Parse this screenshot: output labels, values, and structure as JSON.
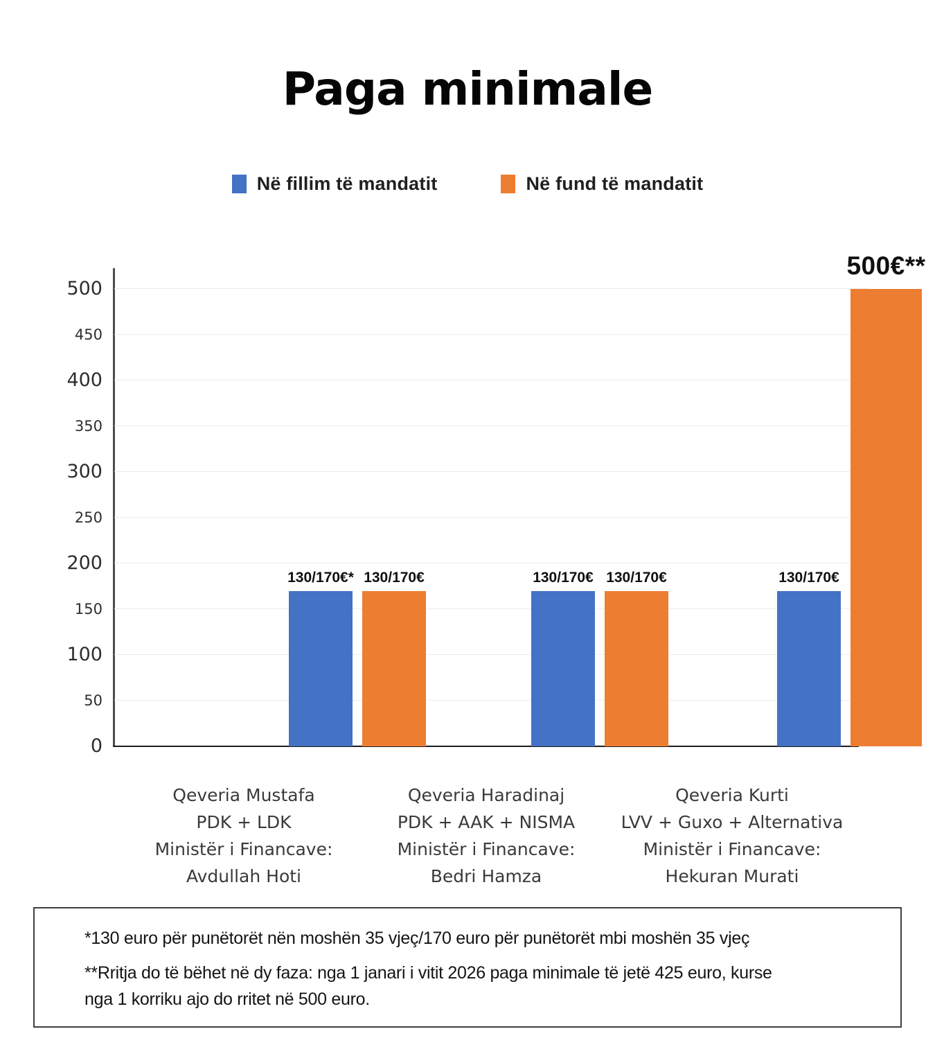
{
  "title": "Paga minimale",
  "legend": [
    {
      "label": "Në fillim të mandatit",
      "color": "#4472C4"
    },
    {
      "label": "Në fund të mandatit",
      "color": "#ED7D31"
    }
  ],
  "chart_data": {
    "type": "bar",
    "title": "Paga minimale",
    "categories": [
      {
        "key": "mustafa",
        "lines": [
          "Qeveria Mustafa",
          "PDK + LDK",
          "Ministër i Financave:",
          "Avdullah Hoti"
        ]
      },
      {
        "key": "haradinaj",
        "lines": [
          "Qeveria Haradinaj",
          "PDK + AAK + NISMA",
          "Ministër i Financave:",
          "Bedri Hamza"
        ]
      },
      {
        "key": "kurti",
        "lines": [
          "Qeveria Kurti",
          "LVV + Guxo + Alternativa",
          "Ministër i Financave:",
          "Hekuran Murati"
        ]
      }
    ],
    "series": [
      {
        "name": "Në fillim të mandatit",
        "key": "fillim",
        "color": "#4472C4",
        "values": [
          170,
          170,
          170
        ],
        "labels": [
          "130/170€*",
          "130/170€",
          "130/170€"
        ]
      },
      {
        "name": "Në fund të mandatit",
        "key": "fund",
        "color": "#ED7D31",
        "values": [
          170,
          170,
          500
        ],
        "labels": [
          "130/170€",
          "130/170€",
          "500€**"
        ]
      }
    ],
    "ylim": [
      0,
      500
    ],
    "ytick_step": 50,
    "ytick_labels": [
      "0",
      "50",
      "100",
      "150",
      "200",
      "250",
      "300",
      "350",
      "400",
      "450",
      "500"
    ],
    "grid": true,
    "legend_position": "top"
  },
  "footnotes": {
    "first": "*130 euro për punëtorët nën moshën 35 vjeç/170 euro për punëtorët mbi moshën 35 vjeç",
    "second": "**Rritja do të bëhet në dy faza: nga 1 janari i vitit 2026 paga minimale të jetë 425 euro, kurse\nnga 1 korriku ajo do rritet në 500 euro."
  }
}
